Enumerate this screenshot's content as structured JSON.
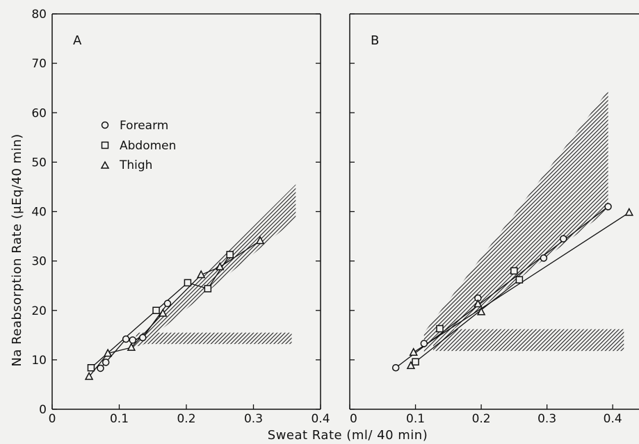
{
  "figure": {
    "xlabel": "Sweat Rate  (ml/ 40 min)",
    "ylabel": "Na Reabsorption Rate  (μEq/40 min)"
  },
  "legend": {
    "items": [
      {
        "label": "Forearm",
        "marker": "circle"
      },
      {
        "label": "Abdomen",
        "marker": "square"
      },
      {
        "label": "Thigh",
        "marker": "triangle"
      }
    ]
  },
  "colors": {
    "ink": "#111111",
    "background": "#f2f2f0",
    "hatch": "#222222"
  },
  "chart_data": [
    {
      "type": "line",
      "panel_label": "A",
      "xlim": [
        0,
        0.4
      ],
      "ylim": [
        0,
        80
      ],
      "x_ticks": [
        0,
        0.1,
        0.2,
        0.3,
        0.4
      ],
      "x_tick_labels": [
        "0",
        "0.1",
        "0.2",
        "0.3",
        "0.4"
      ],
      "y_ticks": [
        0,
        10,
        20,
        30,
        40,
        50,
        60,
        70,
        80
      ],
      "y_tick_labels": [
        "0",
        "10",
        "20",
        "30",
        "40",
        "50",
        "60",
        "70",
        "80"
      ],
      "grid": false,
      "legend_position": "upper-left",
      "shaded_bands": [
        {
          "name": "sloped band",
          "polygon": [
            [
              0.118,
              12.5
            ],
            [
              0.363,
              45.5
            ],
            [
              0.363,
              38.5
            ],
            [
              0.135,
              13.0
            ]
          ]
        },
        {
          "name": "horizontal band",
          "polygon": [
            [
              0.125,
              15.5
            ],
            [
              0.357,
              15.5
            ],
            [
              0.357,
              13.2
            ],
            [
              0.125,
              13.2
            ]
          ]
        }
      ],
      "series": [
        {
          "name": "Forearm",
          "marker": "circle",
          "x": [
            0.072,
            0.08,
            0.11,
            0.12,
            0.135,
            0.172
          ],
          "y": [
            8.3,
            9.5,
            14.2,
            14.0,
            14.5,
            21.4
          ]
        },
        {
          "name": "Abdomen",
          "marker": "square",
          "x": [
            0.058,
            0.155,
            0.202,
            0.232,
            0.265
          ],
          "y": [
            8.4,
            20.0,
            25.6,
            24.4,
            31.3
          ]
        },
        {
          "name": "Thigh",
          "marker": "triangle",
          "x": [
            0.055,
            0.083,
            0.118,
            0.165,
            0.222,
            0.25,
            0.31
          ],
          "y": [
            6.6,
            11.3,
            12.5,
            19.4,
            27.2,
            28.8,
            34.1
          ]
        }
      ]
    },
    {
      "type": "line",
      "panel_label": "B",
      "xlim": [
        0,
        0.44
      ],
      "ylim": [
        0,
        80
      ],
      "x_ticks": [
        0,
        0.1,
        0.2,
        0.3,
        0.4
      ],
      "x_tick_labels": [
        "0",
        "0.1",
        "0.2",
        "0.3",
        "0.4"
      ],
      "y_ticks": [
        0,
        10,
        20,
        30,
        40,
        50,
        60,
        70,
        80
      ],
      "y_tick_labels": [
        "",
        "",
        "",
        "",
        "",
        "",
        "",
        "",
        ""
      ],
      "grid": false,
      "shaded_bands": [
        {
          "name": "sloped band",
          "polygon": [
            [
              0.113,
              15.5
            ],
            [
              0.393,
              64.5
            ],
            [
              0.393,
              40.3
            ],
            [
              0.113,
              11.6
            ]
          ]
        },
        {
          "name": "horizontal band",
          "polygon": [
            [
              0.127,
              16.2
            ],
            [
              0.417,
              16.2
            ],
            [
              0.417,
              11.8
            ],
            [
              0.127,
              11.8
            ]
          ]
        }
      ],
      "series": [
        {
          "name": "Forearm",
          "marker": "circle",
          "x": [
            0.07,
            0.113,
            0.195,
            0.295,
            0.325,
            0.393
          ],
          "y": [
            8.4,
            13.3,
            22.5,
            30.6,
            34.5,
            41.0
          ]
        },
        {
          "name": "Abdomen",
          "marker": "square",
          "x": [
            0.1,
            0.137,
            0.25,
            0.258
          ],
          "y": [
            9.6,
            16.3,
            28.0,
            26.2
          ]
        },
        {
          "name": "Thigh",
          "marker": "triangle",
          "x": [
            0.093,
            0.097,
            0.195,
            0.2,
            0.425
          ],
          "y": [
            8.8,
            11.5,
            21.3,
            19.7,
            39.8
          ]
        }
      ],
      "fit_lines": [
        {
          "x": [
            0.07,
            0.393
          ],
          "y": [
            8.4,
            41.0
          ]
        },
        {
          "x": [
            0.1,
            0.258
          ],
          "y": [
            9.6,
            26.2
          ]
        },
        {
          "x": [
            0.097,
            0.425
          ],
          "y": [
            11.5,
            39.8
          ]
        }
      ]
    }
  ]
}
